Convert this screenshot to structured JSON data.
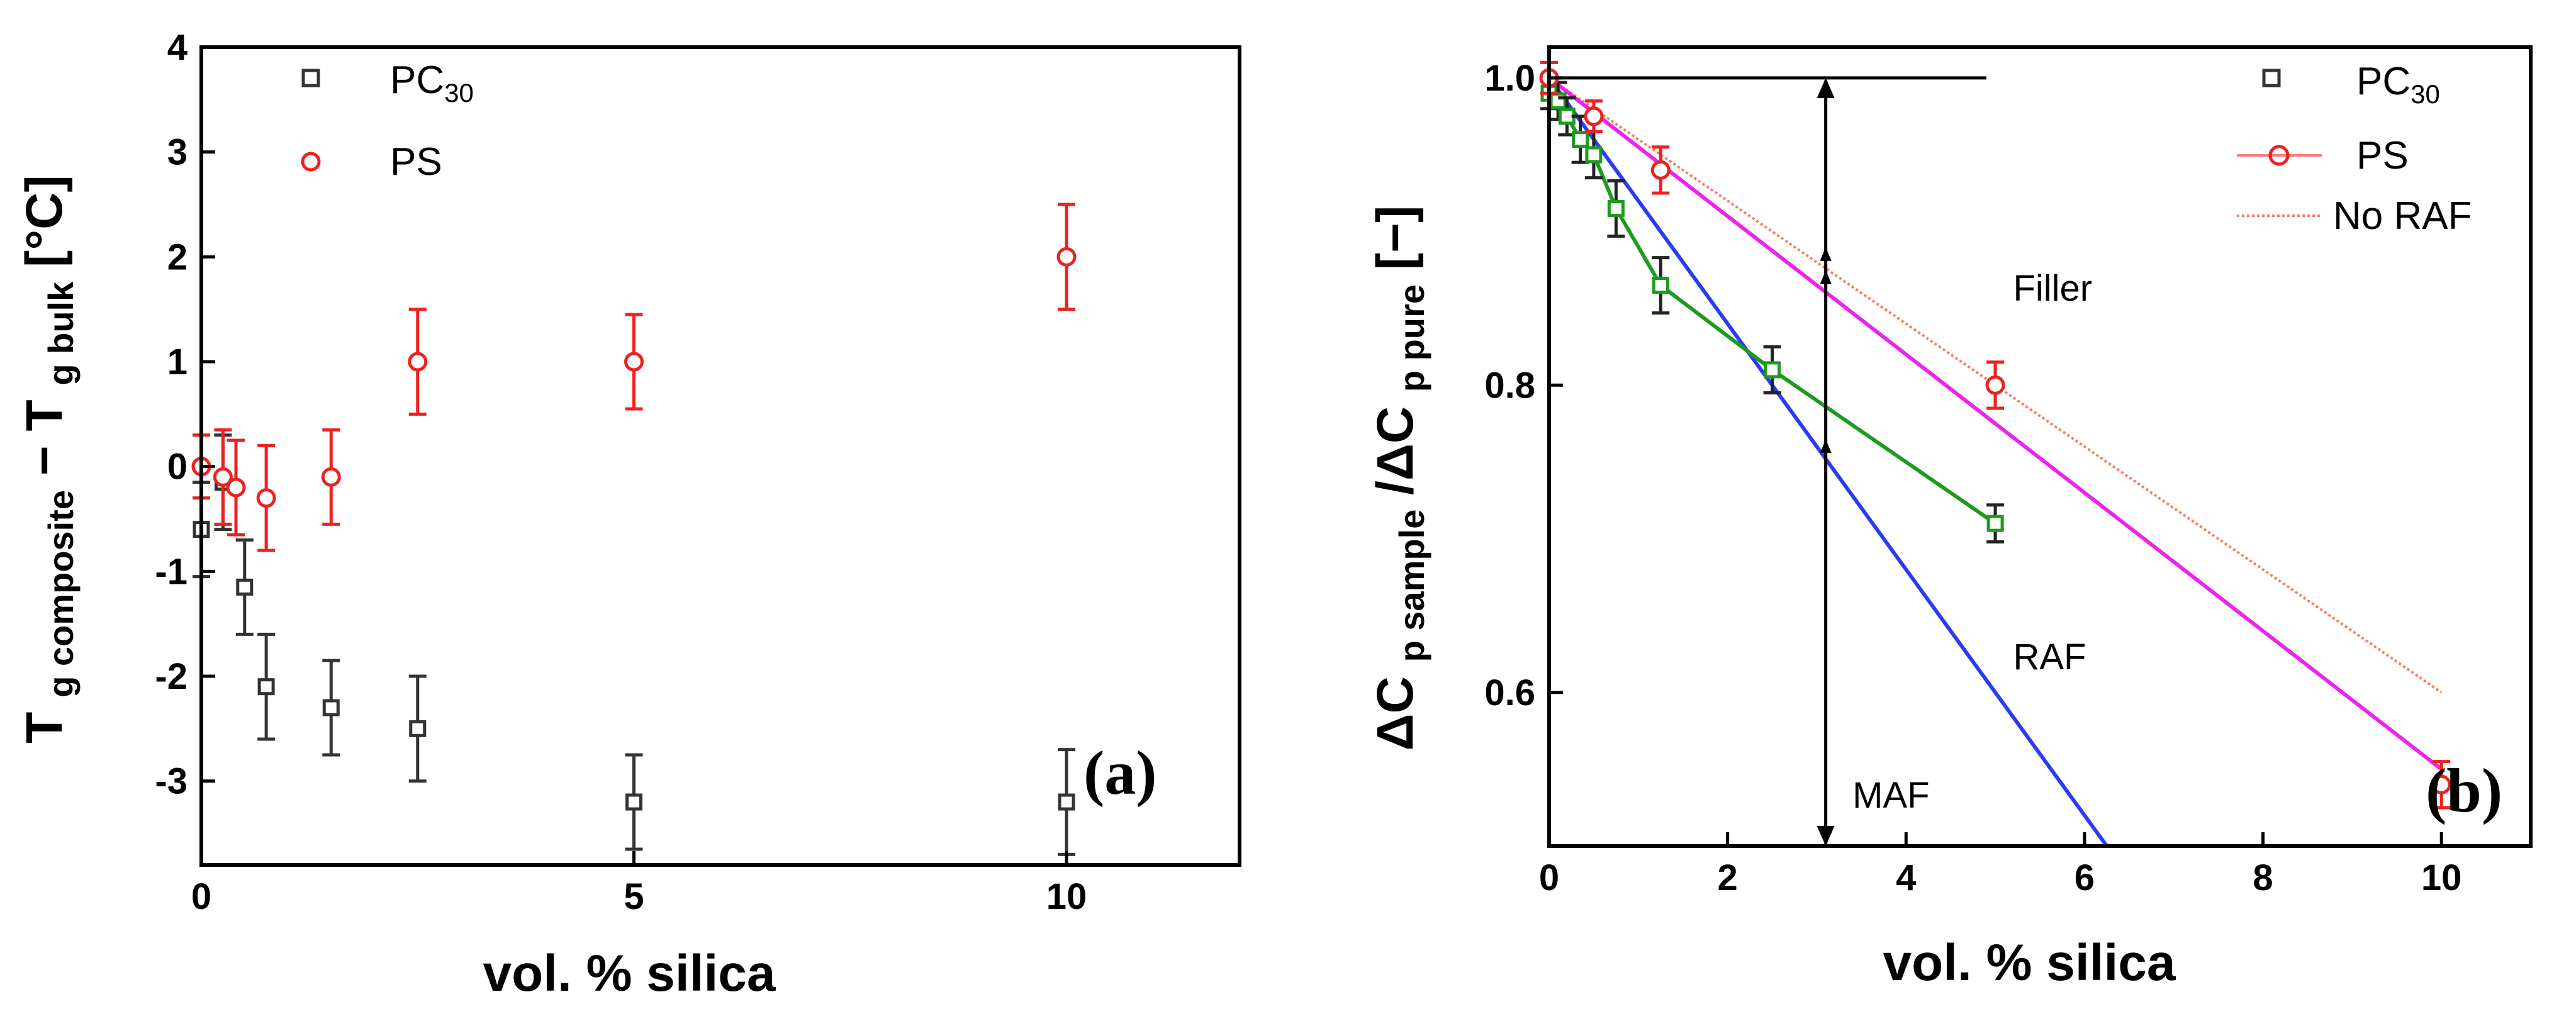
{
  "chart_data": [
    {
      "type": "scatter",
      "panel_label": "(a)",
      "xlabel": "vol. % silica",
      "ylabel": {
        "main_left": "T",
        "sub_left": "g composite",
        "minus": " − T",
        "sub_right": "g bulk",
        "unit": " [°C]"
      },
      "xlim": [
        0,
        12
      ],
      "ylim": [
        -3.8,
        4
      ],
      "xticks": [
        0,
        5,
        10
      ],
      "yticks": [
        -3,
        -2,
        -1,
        0,
        1,
        2,
        3,
        4
      ],
      "legend": {
        "position": "top-right",
        "entries": [
          {
            "main": "PC",
            "sub": "30"
          },
          {
            "main": "PS",
            "sub": ""
          }
        ]
      },
      "series": [
        {
          "name": "PC30",
          "color": "#333333",
          "marker": "square",
          "x": [
            0,
            0.25,
            0.5,
            0.75,
            1.5,
            2.5,
            5,
            10
          ],
          "y": [
            -0.6,
            -0.15,
            -1.15,
            -2.1,
            -2.3,
            -2.5,
            -3.2,
            -3.2
          ],
          "err": [
            0.45,
            0.45,
            0.45,
            0.5,
            0.45,
            0.5,
            0.45,
            0.5
          ]
        },
        {
          "name": "PS",
          "color": "#ee2020",
          "marker": "circle",
          "x": [
            0,
            0.25,
            0.4,
            0.75,
            1.5,
            2.5,
            5,
            10
          ],
          "y": [
            0,
            -0.1,
            -0.2,
            -0.3,
            -0.1,
            1.0,
            1.0,
            2.0
          ],
          "err": [
            0.3,
            0.45,
            0.45,
            0.5,
            0.45,
            0.5,
            0.45,
            0.5
          ]
        }
      ]
    },
    {
      "type": "line",
      "panel_label": "(b)",
      "xlabel": "vol. % silica",
      "ylabel": {
        "delta1": "ΔC",
        "sub1": "p sample",
        "slash": "/ΔC",
        "sub2": "p pure",
        "unit": " [−]"
      },
      "xlim": [
        0,
        11
      ],
      "ylim": [
        0.5,
        1.02
      ],
      "xticks": [
        0,
        2,
        4,
        6,
        8,
        10
      ],
      "yticks": [
        0.6,
        0.8,
        1.0
      ],
      "ytick_labels": [
        "0.6",
        "0.8",
        "1.0"
      ],
      "legend": {
        "position": "top-right",
        "entries": [
          {
            "main": "PC",
            "sub": "30"
          },
          {
            "main": "PS",
            "sub": ""
          },
          {
            "main": "No RAF",
            "sub": ""
          }
        ]
      },
      "series": [
        {
          "name": "PC30",
          "color": "#1e9a1e",
          "marker": "square",
          "x": [
            0,
            0.1,
            0.2,
            0.35,
            0.5,
            0.75,
            1.25,
            2.5,
            5
          ],
          "y": [
            0.99,
            0.985,
            0.975,
            0.96,
            0.95,
            0.915,
            0.865,
            0.81,
            0.71
          ],
          "err": [
            0.01,
            0.012,
            0.012,
            0.015,
            0.015,
            0.018,
            0.018,
            0.015,
            0.012
          ]
        },
        {
          "name": "PS",
          "color": "#ee2020",
          "marker": "circle",
          "x": [
            0,
            0.5,
            1.25,
            5,
            10
          ],
          "y": [
            1.0,
            0.975,
            0.94,
            0.8,
            0.54
          ],
          "err": [
            0.01,
            0.01,
            0.015,
            0.015,
            0.015
          ]
        }
      ],
      "fit_lines": [
        {
          "name": "No RAF",
          "color": "#ff7a5a",
          "style": "dotted",
          "x": [
            0,
            10
          ],
          "y": [
            1.0,
            0.6
          ]
        },
        {
          "name": "PS fit",
          "color": "#ee22ee",
          "style": "solid",
          "x": [
            0,
            10
          ],
          "y": [
            1.0,
            0.55
          ]
        },
        {
          "name": "MAF",
          "color": "#2a3cf0",
          "style": "solid",
          "x": [
            0,
            6.25
          ],
          "y": [
            1.0,
            0.5
          ]
        }
      ],
      "reference_line": {
        "y": 1.0,
        "x_from": 0,
        "x_to": 4.9
      },
      "vertical_arrow": {
        "x": 3.1,
        "y_top": 1.0,
        "y_bottom": 0.5,
        "marks": [
          0.885,
          0.87,
          0.76
        ]
      },
      "annotations": [
        {
          "text": "Filler",
          "x": 5.2,
          "y": 0.855
        },
        {
          "text": "RAF",
          "x": 5.2,
          "y": 0.615
        },
        {
          "text": "MAF",
          "x": 3.4,
          "y": 0.525
        }
      ]
    }
  ]
}
